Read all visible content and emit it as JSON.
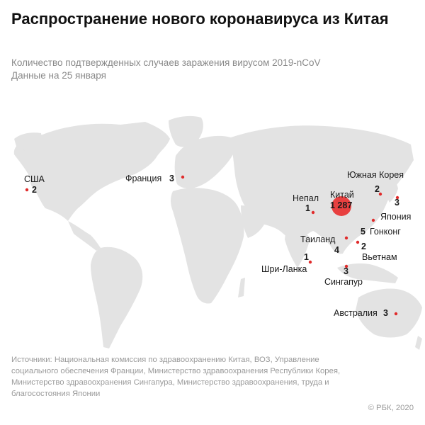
{
  "header": {
    "title": "Распространение нового коронавируса из Китая",
    "subtitle_line1": "Количество подтвержденных случаев заражения вирусом 2019-nCoV",
    "subtitle_line2": "Данные на 25 января"
  },
  "markers": [
    {
      "id": "usa",
      "name": "США",
      "count": "2"
    },
    {
      "id": "france",
      "name": "Франция",
      "count": "3"
    },
    {
      "id": "south-korea",
      "name": "Южная Корея",
      "count": "2"
    },
    {
      "id": "japan",
      "name": "Япония",
      "count": "3"
    },
    {
      "id": "nepal",
      "name": "Непал",
      "count": "1"
    },
    {
      "id": "china",
      "name": "Китай",
      "count": "1 287"
    },
    {
      "id": "hong-kong",
      "name": "Гонконг",
      "count": "5"
    },
    {
      "id": "thailand",
      "name": "Таиланд",
      "count": "4"
    },
    {
      "id": "vietnam",
      "name": "Вьетнам",
      "count": "2"
    },
    {
      "id": "sri-lanka",
      "name": "Шри-Ланка",
      "count": "1"
    },
    {
      "id": "singapore",
      "name": "Сингапур",
      "count": "3"
    },
    {
      "id": "australia",
      "name": "Австралия",
      "count": "3"
    }
  ],
  "colors": {
    "marker": "#e02b2b",
    "china_bubble": "#e84040",
    "land": "#e3e3e3",
    "text": "#1a1a1a",
    "muted": "#8a8a8a"
  },
  "footer": {
    "sources": "Источники: Национальная комиссия по здравоохранению Китая, ВОЗ, Управление социального обеспечения Франции, Министерство здравоохранения Республики Корея, Министерство здравоохранения Сингапура, Министерство здравоохранения, труда и благосостояния Японии",
    "credit": "© РБК, 2020"
  }
}
